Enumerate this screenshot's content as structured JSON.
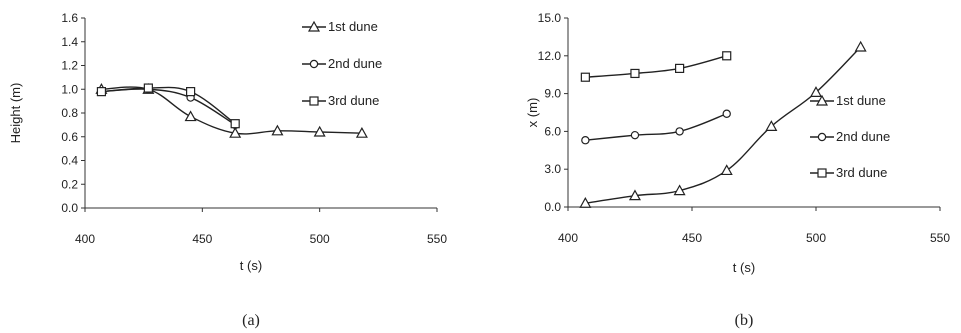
{
  "chart_data": [
    {
      "type": "line",
      "caption": "(a)",
      "title": "",
      "xlabel": "t (s)",
      "ylabel": "Height (m)",
      "xlim": [
        400,
        550
      ],
      "ylim": [
        0.0,
        1.6
      ],
      "xticks": [
        400,
        450,
        500,
        550
      ],
      "xtick_labels": [
        "400",
        "450",
        "500",
        "550"
      ],
      "yticks": [
        0.0,
        0.2,
        0.4,
        0.6,
        0.8,
        1.0,
        1.2,
        1.4,
        1.6
      ],
      "ytick_labels": [
        "0.0",
        "0.2",
        "0.4",
        "0.6",
        "0.8",
        "1.0",
        "1.2",
        "1.4",
        "1.6"
      ],
      "grid": false,
      "legend_position": "top-right",
      "series": [
        {
          "name": "1st dune",
          "marker": "triangle",
          "x": [
            407,
            427,
            445,
            464,
            482,
            500,
            518
          ],
          "y": [
            1.0,
            1.0,
            0.77,
            0.63,
            0.65,
            0.64,
            0.63
          ]
        },
        {
          "name": "2nd dune",
          "marker": "circle",
          "x": [
            407,
            427,
            445,
            464
          ],
          "y": [
            0.98,
            1.0,
            0.93,
            0.7
          ]
        },
        {
          "name": "3rd dune",
          "marker": "square",
          "x": [
            407,
            427,
            445,
            464
          ],
          "y": [
            0.98,
            1.01,
            0.98,
            0.71
          ]
        }
      ]
    },
    {
      "type": "line",
      "caption": "(b)",
      "title": "",
      "xlabel": "t (s)",
      "ylabel": "x (m)",
      "xlim": [
        400,
        550
      ],
      "ylim": [
        0.0,
        15.0
      ],
      "xticks": [
        400,
        450,
        500,
        550
      ],
      "xtick_labels": [
        "400",
        "450",
        "500",
        "550"
      ],
      "yticks": [
        0.0,
        3.0,
        6.0,
        9.0,
        12.0,
        15.0
      ],
      "ytick_labels": [
        "0.0",
        "3.0",
        "6.0",
        "9.0",
        "12.0",
        "15.0"
      ],
      "grid": false,
      "legend_position": "center-right",
      "series": [
        {
          "name": "1st dune",
          "marker": "triangle",
          "x": [
            407,
            427,
            445,
            464,
            482,
            500,
            518
          ],
          "y": [
            0.3,
            0.9,
            1.3,
            2.9,
            6.4,
            9.1,
            12.7
          ]
        },
        {
          "name": "2nd dune",
          "marker": "circle",
          "x": [
            407,
            427,
            445,
            464
          ],
          "y": [
            5.3,
            5.7,
            6.0,
            7.4
          ]
        },
        {
          "name": "3rd dune",
          "marker": "square",
          "x": [
            407,
            427,
            445,
            464
          ],
          "y": [
            10.3,
            10.6,
            11.0,
            12.0
          ]
        }
      ]
    }
  ]
}
